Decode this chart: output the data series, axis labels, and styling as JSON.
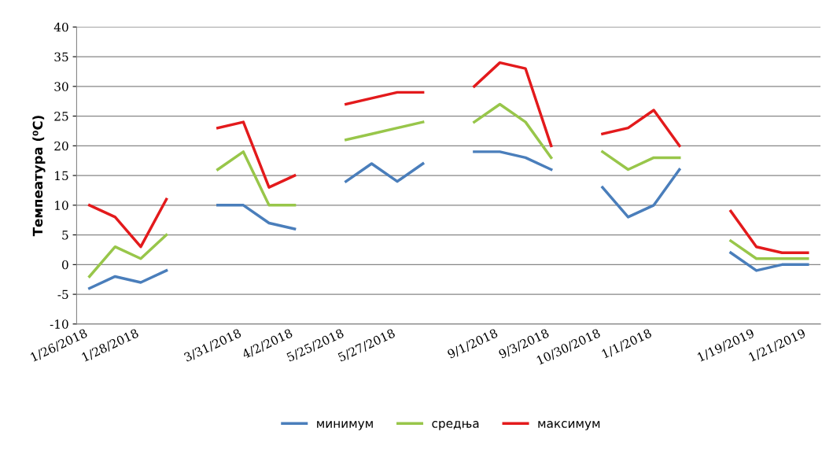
{
  "chart_data": {
    "type": "line",
    "ylabel": "Темпеатура (⁰C)",
    "categories": [
      "1/26/2018",
      null,
      "1/28/2018",
      null,
      null,
      null,
      "3/31/2018",
      null,
      "4/2/2018",
      null,
      "5/25/2018",
      null,
      "5/27/2018",
      null,
      null,
      null,
      "9/1/2018",
      null,
      "9/3/2018",
      null,
      "10/30/2018",
      null,
      "1/1/2018",
      null,
      null,
      null,
      "1/19/2019",
      null,
      "1/21/2019"
    ],
    "series": [
      {
        "name": "минимум",
        "color": "#4a7ebb",
        "values": [
          -4,
          -2,
          -3,
          -1,
          null,
          10,
          10,
          7,
          6,
          null,
          14,
          17,
          14,
          17,
          null,
          19,
          19,
          18,
          16,
          null,
          13,
          8,
          10,
          16,
          null,
          2,
          -1,
          0,
          0
        ]
      },
      {
        "name": "средња",
        "color": "#98c64a",
        "values": [
          -2,
          3,
          1,
          5,
          null,
          16,
          19,
          10,
          10,
          null,
          21,
          22,
          23,
          24,
          null,
          24,
          27,
          24,
          18,
          null,
          19,
          16,
          18,
          18,
          null,
          4,
          1,
          1,
          1
        ]
      },
      {
        "name": "максимум",
        "color": "#e31a1c",
        "values": [
          10,
          8,
          3,
          11,
          null,
          23,
          24,
          13,
          15,
          null,
          27,
          28,
          29,
          29,
          null,
          30,
          34,
          33,
          20,
          null,
          22,
          23,
          26,
          20,
          null,
          9,
          3,
          2,
          2
        ]
      }
    ],
    "ylim": [
      -10,
      40
    ],
    "yticks": [
      -10,
      -5,
      0,
      5,
      10,
      15,
      20,
      25,
      30,
      35,
      40
    ],
    "grid": "y",
    "legend": "bottom",
    "marker": "none",
    "line_style": "solid"
  }
}
